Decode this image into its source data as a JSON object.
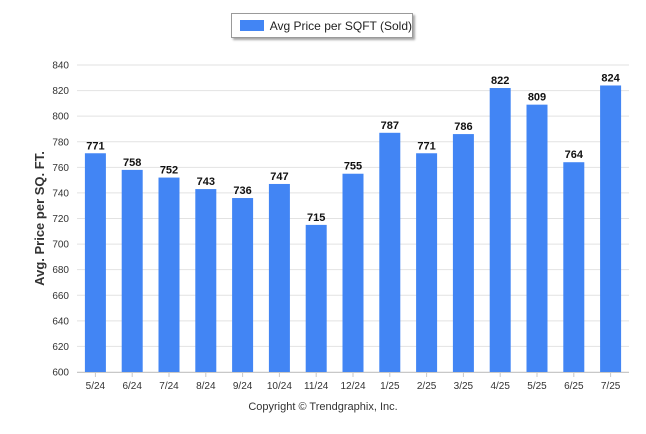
{
  "chart_data": {
    "type": "bar",
    "title": "",
    "xlabel": "",
    "ylabel": "Avg. Price per SQ. FT.",
    "categories": [
      "5/24",
      "6/24",
      "7/24",
      "8/24",
      "9/24",
      "10/24",
      "11/24",
      "12/24",
      "1/25",
      "2/25",
      "3/25",
      "4/25",
      "5/25",
      "6/25",
      "7/25"
    ],
    "series": [
      {
        "name": "Avg Price per SQFT (Sold)",
        "color": "#4285f4",
        "values": [
          771,
          758,
          752,
          743,
          736,
          747,
          715,
          755,
          787,
          771,
          786,
          822,
          809,
          764,
          824
        ]
      }
    ],
    "ylim": [
      600,
      840
    ],
    "yticks": [
      600,
      620,
      640,
      660,
      680,
      700,
      720,
      740,
      760,
      780,
      800,
      820,
      840
    ],
    "grid": true,
    "legend_position": "top-center",
    "data_labels": true
  },
  "credit": "Copyright © Trendgraphix, Inc."
}
